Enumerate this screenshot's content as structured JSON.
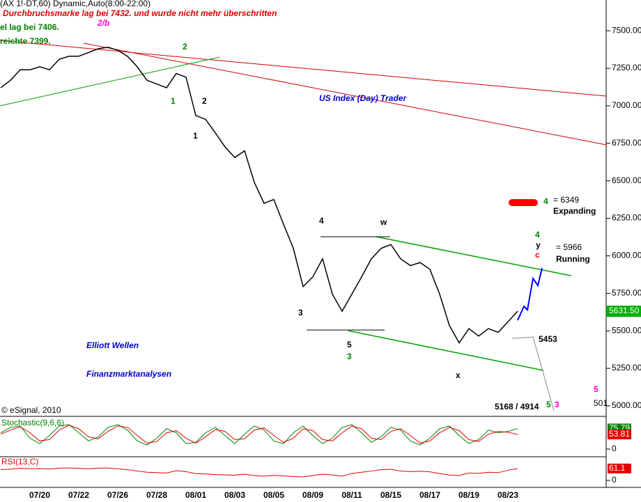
{
  "chart_data": [
    {
      "type": "line",
      "title": "(AX 1!-DT,60) Dynamic,Auto(8:00-22:00)",
      "categories": [
        null,
        null,
        null,
        null,
        "07/20",
        null,
        null,
        null,
        "07/22",
        null,
        null,
        null,
        "07/26",
        null,
        null,
        null,
        "07/28",
        null,
        null,
        null,
        "08/01",
        null,
        null,
        null,
        "08/03",
        null,
        null,
        null,
        "08/05",
        null,
        null,
        null,
        "08/09",
        null,
        null,
        null,
        "08/11",
        null,
        null,
        null,
        "08/15",
        null,
        null,
        null,
        "08/17",
        null,
        null,
        null,
        "08/19",
        null,
        null,
        null,
        "08/23",
        null
      ],
      "series": [
        {
          "name": "Price",
          "color": "#000000",
          "values": [
            7120,
            7170,
            7240,
            7240,
            7260,
            7240,
            7310,
            7330,
            7330,
            7355,
            7380,
            7390,
            7370,
            7330,
            7260,
            7170,
            7145,
            7120,
            7215,
            7190,
            6935,
            6910,
            6820,
            6725,
            6655,
            6700,
            6490,
            6350,
            6375,
            6210,
            6050,
            5795,
            5860,
            5980,
            5745,
            5630,
            5745,
            5860,
            5980,
            6050,
            6075,
            5980,
            5935,
            5955,
            5910,
            5745,
            5535,
            5420,
            5515,
            5465,
            5515,
            5490,
            5560,
            5631.5
          ]
        }
      ],
      "ylim": [
        4930,
        7705
      ],
      "yticks": [
        {
          "value": 5000,
          "label": "5000.00"
        },
        {
          "value": 5250,
          "label": "5250.00"
        },
        {
          "value": 5500,
          "label": "5500.00"
        },
        {
          "value": 5750,
          "label": "5750.00"
        },
        {
          "value": 6000,
          "label": "6000.00"
        },
        {
          "value": 6250,
          "label": "6250.00"
        },
        {
          "value": 6500,
          "label": "6500.00"
        },
        {
          "value": 6750,
          "label": "6750.00"
        },
        {
          "value": 7000,
          "label": "7000.00"
        },
        {
          "value": 7250,
          "label": "7250.00"
        },
        {
          "value": 7500,
          "label": "7500.00"
        }
      ],
      "annotations": [
        {
          "text": "Durchbruchsmarke lag bei 7432. und wurde nicht mehr überschritten",
          "color": "#e00000"
        },
        {
          "text": "el lag bei 7406.",
          "color": "#008000"
        },
        {
          "text": "reichte 7399.",
          "color": "#008000"
        },
        {
          "text": "2/b",
          "color": "#ff00cc"
        },
        {
          "text": "US Index (Day) Trader",
          "color": "#0000cc"
        },
        {
          "text": "Elliott Wellen",
          "color": "#0000cc"
        },
        {
          "text": "Finanzmarktanalysen",
          "color": "#0000cc"
        },
        {
          "text": "4",
          "color": "#008000"
        },
        {
          "text": "= 6349",
          "color": "#000000"
        },
        {
          "text": "Expanding",
          "color": "#000000"
        },
        {
          "text": "4",
          "color": "#008000"
        },
        {
          "text": "y",
          "color": "#000000"
        },
        {
          "text": "c",
          "color": "#e00000"
        },
        {
          "text": "= 5966",
          "color": "#000000"
        },
        {
          "text": "Running",
          "color": "#000000"
        },
        {
          "text": "5453",
          "color": "#000000"
        },
        {
          "text": "5168 / 4914",
          "color": "#000000"
        },
        {
          "text": "5",
          "color": "#008000"
        },
        {
          "text": "3",
          "color": "#ff00cc"
        },
        {
          "text": "5",
          "color": "#ff00cc"
        },
        {
          "text": "501",
          "color": "#000000"
        },
        {
          "text": "2",
          "color": "#008000"
        },
        {
          "text": "1",
          "color": "#008000"
        },
        {
          "text": "3",
          "color": "#008000"
        },
        {
          "text": "4",
          "color": "#000000"
        },
        {
          "text": "5",
          "color": "#000000"
        },
        {
          "text": "w",
          "color": "#000000"
        },
        {
          "text": "x",
          "color": "#000000"
        },
        {
          "text": "3",
          "color": "#000000"
        },
        {
          "text": "1",
          "color": "#000000"
        },
        {
          "text": "2",
          "color": "#000000"
        },
        {
          "text": "© eSignal, 2010",
          "color": "#000000"
        },
        {
          "text": "5631.50",
          "color": "#ffffff"
        }
      ]
    },
    {
      "type": "line",
      "title": "Stochastic(9,6,6)",
      "ylim": [
        0,
        100
      ],
      "yticks": [
        0
      ],
      "series": [
        {
          "name": "%K",
          "color": "#008000",
          "values": [
            60,
            80,
            85,
            40,
            20,
            50,
            85,
            90,
            60,
            30,
            45,
            80,
            90,
            70,
            30,
            15,
            40,
            75,
            60,
            20,
            25,
            60,
            80,
            50,
            20,
            55,
            85,
            70,
            30,
            20,
            60,
            85,
            50,
            20,
            40,
            80,
            90,
            60,
            25,
            45,
            80,
            70,
            30,
            15,
            40,
            75,
            85,
            50,
            20,
            35,
            70,
            60,
            65,
            75.79
          ],
          "value_label": "75.79"
        },
        {
          "name": "%D",
          "color": "#e00000",
          "values": [
            55,
            70,
            82,
            60,
            30,
            35,
            70,
            88,
            75,
            45,
            38,
            65,
            85,
            80,
            50,
            22,
            28,
            60,
            68,
            40,
            22,
            45,
            72,
            65,
            35,
            38,
            70,
            78,
            50,
            25,
            40,
            75,
            68,
            35,
            30,
            60,
            85,
            75,
            40,
            35,
            65,
            75,
            50,
            22,
            30,
            60,
            80,
            68,
            35,
            28,
            55,
            65,
            62,
            53.81
          ],
          "value_label": "53.81"
        }
      ]
    },
    {
      "type": "line",
      "title": "RSI(13,C)",
      "ylim": [
        0,
        100
      ],
      "yticks": [
        0
      ],
      "series": [
        {
          "name": "RSI",
          "color": "#e00000",
          "values": [
            55,
            58,
            62,
            60,
            61,
            58,
            63,
            64,
            62,
            60,
            63,
            64,
            60,
            55,
            48,
            42,
            40,
            38,
            50,
            45,
            35,
            33,
            30,
            28,
            27,
            32,
            25,
            22,
            26,
            23,
            20,
            18,
            25,
            32,
            28,
            22,
            35,
            42,
            48,
            55,
            57,
            48,
            45,
            47,
            44,
            35,
            28,
            25,
            38,
            36,
            42,
            40,
            52,
            61.1
          ],
          "value_label": "61.1"
        }
      ]
    }
  ]
}
